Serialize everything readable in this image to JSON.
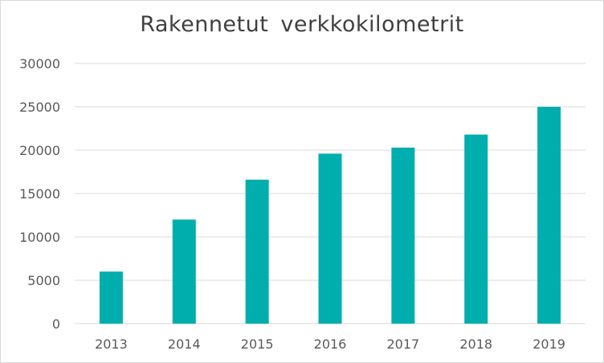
{
  "chart_data": {
    "type": "bar",
    "title": "Rakennetut  verkkokilometrit",
    "xlabel": "",
    "ylabel": "",
    "categories": [
      "2013",
      "2014",
      "2015",
      "2016",
      "2017",
      "2018",
      "2019"
    ],
    "values": [
      6000,
      12000,
      16600,
      19600,
      20300,
      21800,
      25000
    ],
    "ylim": [
      0,
      30000
    ],
    "yticks": [
      0,
      5000,
      10000,
      15000,
      20000,
      25000,
      30000
    ],
    "grid": true,
    "legend": "none",
    "bar_color": "#00aeae",
    "grid_color": "#d9d9d9"
  }
}
